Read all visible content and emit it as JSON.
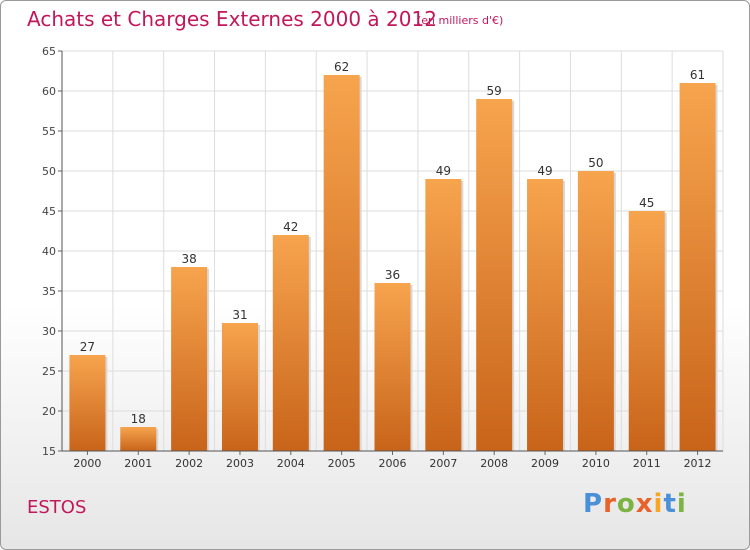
{
  "header": {
    "title": "Achats et Charges Externes 2000 à 2012",
    "subtitle": "(en milliers d'€)"
  },
  "footer": {
    "commune": "ESTOS",
    "logo_text": "Proxiti"
  },
  "colors": {
    "title": "#c2185b",
    "bar_light": "#f7a44e",
    "bar_dark": "#c8641a",
    "grid": "#dddddd",
    "logo_letters": [
      "#4a90d9",
      "#e8622a",
      "#7cb342",
      "#e8622a",
      "#f5a623",
      "#4a90d9",
      "#7cb342"
    ]
  },
  "chart_data": {
    "type": "bar",
    "title": "Achats et Charges Externes 2000 à 2012",
    "xlabel": "",
    "ylabel": "",
    "categories": [
      "2000",
      "2001",
      "2002",
      "2003",
      "2004",
      "2005",
      "2006",
      "2007",
      "2008",
      "2009",
      "2010",
      "2011",
      "2012"
    ],
    "values": [
      27,
      18,
      38,
      31,
      42,
      62,
      36,
      49,
      59,
      49,
      50,
      45,
      61
    ],
    "ylim": [
      15,
      65
    ],
    "yticks": [
      15,
      20,
      25,
      30,
      35,
      40,
      45,
      50,
      55,
      60,
      65
    ],
    "grid": true,
    "data_labels": true
  }
}
